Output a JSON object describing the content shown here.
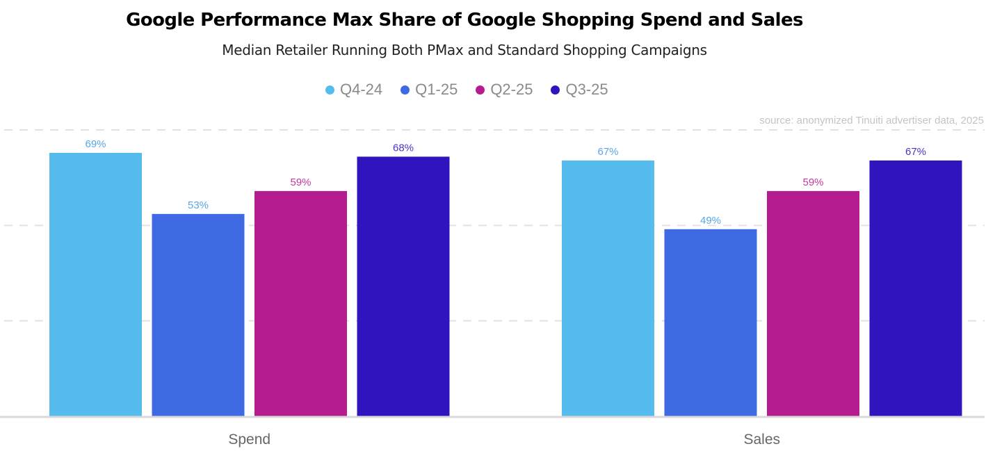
{
  "chart_data": {
    "type": "bar",
    "title": "Google Performance Max Share of Google Shopping Spend and Sales",
    "subtitle": "Median Retailer Running Both PMax and Standard Shopping Campaigns",
    "source": "source: anonymized Tinuiti advertiser data, 2025",
    "categories": [
      "Spend",
      "Sales"
    ],
    "series": [
      {
        "name": "Q4-24",
        "color": "#56BCED",
        "label_color": "#5AA5E6",
        "values": [
          69,
          67
        ],
        "labels": [
          "69%",
          "67%"
        ]
      },
      {
        "name": "Q1-25",
        "color": "#3F6AE3",
        "label_color": "#5AA5E6",
        "values": [
          53,
          49
        ],
        "labels": [
          "53%",
          "49%"
        ]
      },
      {
        "name": "Q2-25",
        "color": "#B51C8F",
        "label_color": "#C23A9E",
        "values": [
          59,
          59
        ],
        "labels": [
          "59%",
          "59%"
        ]
      },
      {
        "name": "Q3-25",
        "color": "#3014BD",
        "label_color": "#4B33C8",
        "values": [
          68,
          67
        ],
        "labels": [
          "68%",
          "67%"
        ]
      }
    ],
    "xlabel": "",
    "ylabel": "",
    "ylim": [
      0,
      75
    ],
    "grid": true,
    "gridlines": [
      25,
      50,
      75
    ],
    "legend": "top-center"
  }
}
